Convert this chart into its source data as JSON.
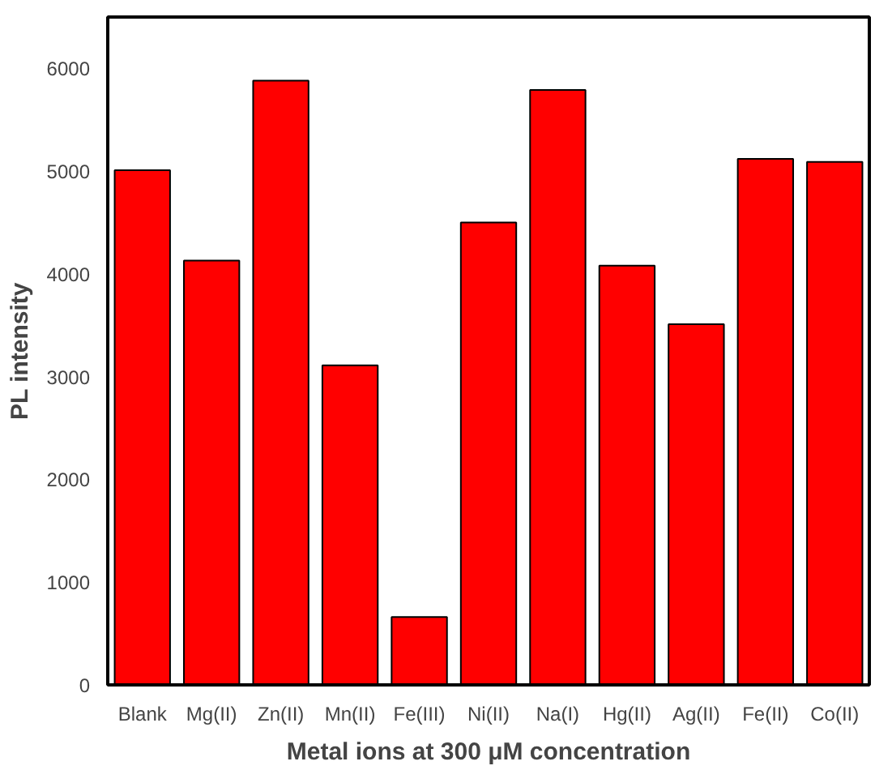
{
  "chart_data": {
    "type": "bar",
    "xlabel": "Metal ions at 300 μM concentration",
    "ylabel": "PL intensity",
    "categories": [
      "Blank",
      "Mg(II)",
      "Zn(II)",
      "Mn(II)",
      "Fe(III)",
      "Ni(II)",
      "Na(I)",
      "Hg(II)",
      "Ag(II)",
      "Fe(II)",
      "Co(II)"
    ],
    "values": [
      5010,
      4130,
      5880,
      3110,
      660,
      4500,
      5790,
      4080,
      3510,
      5120,
      5090
    ],
    "color": "#ff0000",
    "ylim": [
      0,
      6500
    ],
    "yticks": [
      0,
      1000,
      2000,
      3000,
      4000,
      5000,
      6000
    ],
    "grid": false
  }
}
